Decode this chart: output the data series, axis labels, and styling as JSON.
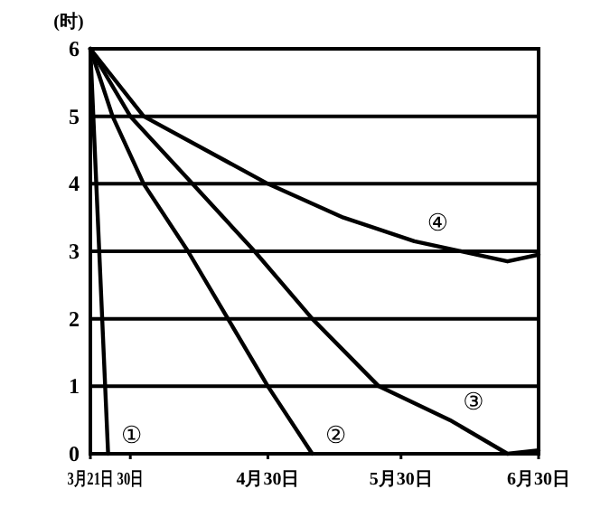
{
  "chart_data": {
    "type": "line",
    "ylabel": "(时)",
    "xlim": [
      "--03-21",
      "--06-30"
    ],
    "xticks": [
      {
        "value": "--03-21",
        "label": "3月21日"
      },
      {
        "value": "--03-30",
        "label": "30日"
      },
      {
        "value": "--04-30",
        "label": "4月30日"
      },
      {
        "value": "--05-30",
        "label": "5月30日"
      },
      {
        "value": "--06-30",
        "label": "6月30日"
      }
    ],
    "ylim": [
      0,
      6
    ],
    "yticks": [
      0,
      1,
      2,
      3,
      4,
      5,
      6
    ],
    "grid": "y",
    "line_style": "solid",
    "series": [
      {
        "name": "①",
        "color": "#000000",
        "x": [
          "--03-21",
          "--03-23",
          "--03-25"
        ],
        "values": [
          6,
          3,
          0
        ]
      },
      {
        "name": "②",
        "color": "#000000",
        "x": [
          "--03-21",
          "--03-26",
          "--04-02",
          "--04-12",
          "--04-21",
          "--04-30",
          "--05-10"
        ],
        "values": [
          6,
          5,
          4,
          3,
          2,
          1,
          0
        ]
      },
      {
        "name": "③",
        "color": "#000000",
        "x": [
          "--03-21",
          "--03-30",
          "--04-13",
          "--04-27",
          "--05-10",
          "--05-25",
          "--06-10",
          "--06-23",
          "--06-30"
        ],
        "values": [
          6,
          5,
          4,
          3,
          2,
          1,
          0.5,
          0,
          0.05
        ]
      },
      {
        "name": "④",
        "color": "#000000",
        "x": [
          "--03-21",
          "--04-02",
          "--04-30",
          "--05-17",
          "--06-02",
          "--06-23",
          "--06-30"
        ],
        "values": [
          6,
          5,
          4,
          3.5,
          3.15,
          2.85,
          2.95
        ]
      }
    ]
  }
}
